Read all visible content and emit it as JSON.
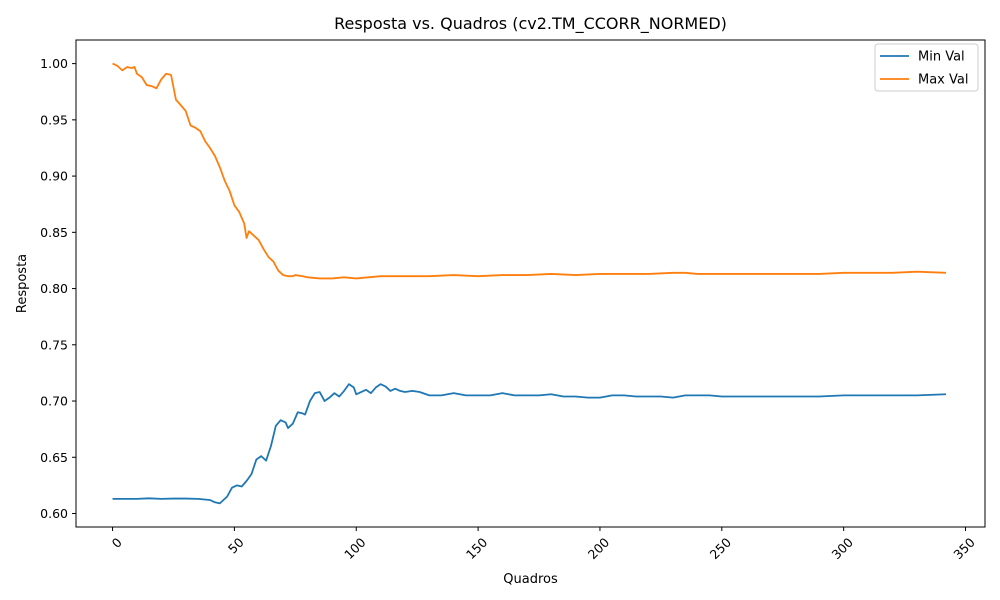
{
  "chart_data": {
    "type": "line",
    "title": "Resposta vs. Quadros (cv2.TM_CCORR_NORMED)",
    "xlabel": "Quadros",
    "ylabel": "Resposta",
    "xlim": [
      -15,
      358
    ],
    "ylim": [
      0.588,
      1.021
    ],
    "xticks": [
      0,
      50,
      100,
      150,
      200,
      250,
      300,
      350
    ],
    "yticks": [
      0.6,
      0.65,
      0.7,
      0.75,
      0.8,
      0.85,
      0.9,
      0.95,
      1.0
    ],
    "ytick_labels": [
      "0.60",
      "0.65",
      "0.70",
      "0.75",
      "0.80",
      "0.85",
      "0.90",
      "0.95",
      "1.00"
    ],
    "xtick_rotation": 45,
    "grid": false,
    "legend_position": "top-right",
    "series": [
      {
        "name": "Min Val",
        "color": "#1f77b4",
        "points": [
          [
            0,
            0.613
          ],
          [
            5,
            0.613
          ],
          [
            10,
            0.613
          ],
          [
            15,
            0.6135
          ],
          [
            20,
            0.613
          ],
          [
            25,
            0.6133
          ],
          [
            30,
            0.6133
          ],
          [
            35,
            0.613
          ],
          [
            40,
            0.612
          ],
          [
            42,
            0.61
          ],
          [
            44,
            0.609
          ],
          [
            47,
            0.615
          ],
          [
            49,
            0.623
          ],
          [
            51,
            0.625
          ],
          [
            53,
            0.624
          ],
          [
            55,
            0.629
          ],
          [
            57,
            0.635
          ],
          [
            59,
            0.648
          ],
          [
            61,
            0.651
          ],
          [
            63,
            0.647
          ],
          [
            65,
            0.66
          ],
          [
            67,
            0.678
          ],
          [
            69,
            0.683
          ],
          [
            71,
            0.681
          ],
          [
            72,
            0.676
          ],
          [
            74,
            0.68
          ],
          [
            76,
            0.69
          ],
          [
            78,
            0.689
          ],
          [
            79,
            0.688
          ],
          [
            81,
            0.7
          ],
          [
            83,
            0.707
          ],
          [
            85,
            0.708
          ],
          [
            87,
            0.7
          ],
          [
            89,
            0.703
          ],
          [
            91,
            0.707
          ],
          [
            93,
            0.704
          ],
          [
            95,
            0.709
          ],
          [
            97,
            0.715
          ],
          [
            99,
            0.712
          ],
          [
            100,
            0.706
          ],
          [
            102,
            0.708
          ],
          [
            104,
            0.71
          ],
          [
            106,
            0.707
          ],
          [
            108,
            0.712
          ],
          [
            110,
            0.715
          ],
          [
            112,
            0.713
          ],
          [
            114,
            0.709
          ],
          [
            116,
            0.711
          ],
          [
            118,
            0.709
          ],
          [
            120,
            0.708
          ],
          [
            123,
            0.709
          ],
          [
            126,
            0.708
          ],
          [
            130,
            0.705
          ],
          [
            135,
            0.705
          ],
          [
            140,
            0.707
          ],
          [
            145,
            0.705
          ],
          [
            150,
            0.705
          ],
          [
            155,
            0.705
          ],
          [
            160,
            0.707
          ],
          [
            165,
            0.705
          ],
          [
            170,
            0.705
          ],
          [
            175,
            0.705
          ],
          [
            180,
            0.706
          ],
          [
            185,
            0.704
          ],
          [
            190,
            0.704
          ],
          [
            195,
            0.703
          ],
          [
            200,
            0.703
          ],
          [
            205,
            0.705
          ],
          [
            210,
            0.705
          ],
          [
            215,
            0.704
          ],
          [
            220,
            0.704
          ],
          [
            225,
            0.704
          ],
          [
            230,
            0.703
          ],
          [
            235,
            0.705
          ],
          [
            240,
            0.705
          ],
          [
            245,
            0.705
          ],
          [
            250,
            0.704
          ],
          [
            255,
            0.704
          ],
          [
            260,
            0.704
          ],
          [
            270,
            0.704
          ],
          [
            280,
            0.704
          ],
          [
            290,
            0.704
          ],
          [
            300,
            0.705
          ],
          [
            310,
            0.705
          ],
          [
            320,
            0.705
          ],
          [
            330,
            0.705
          ],
          [
            342,
            0.706
          ]
        ]
      },
      {
        "name": "Max Val",
        "color": "#ff7f0e",
        "points": [
          [
            0,
            1.0
          ],
          [
            2,
            0.998
          ],
          [
            4,
            0.994
          ],
          [
            6,
            0.997
          ],
          [
            8,
            0.996
          ],
          [
            9,
            0.997
          ],
          [
            10,
            0.991
          ],
          [
            12,
            0.988
          ],
          [
            14,
            0.981
          ],
          [
            16,
            0.98
          ],
          [
            18,
            0.978
          ],
          [
            20,
            0.986
          ],
          [
            22,
            0.991
          ],
          [
            24,
            0.99
          ],
          [
            26,
            0.968
          ],
          [
            28,
            0.963
          ],
          [
            30,
            0.958
          ],
          [
            32,
            0.945
          ],
          [
            34,
            0.943
          ],
          [
            36,
            0.94
          ],
          [
            38,
            0.931
          ],
          [
            40,
            0.925
          ],
          [
            42,
            0.918
          ],
          [
            44,
            0.908
          ],
          [
            46,
            0.896
          ],
          [
            48,
            0.887
          ],
          [
            50,
            0.874
          ],
          [
            52,
            0.868
          ],
          [
            54,
            0.858
          ],
          [
            55,
            0.845
          ],
          [
            56,
            0.851
          ],
          [
            58,
            0.847
          ],
          [
            60,
            0.843
          ],
          [
            62,
            0.835
          ],
          [
            64,
            0.828
          ],
          [
            66,
            0.824
          ],
          [
            68,
            0.816
          ],
          [
            70,
            0.812
          ],
          [
            72,
            0.811
          ],
          [
            74,
            0.811
          ],
          [
            75,
            0.812
          ],
          [
            78,
            0.811
          ],
          [
            80,
            0.81
          ],
          [
            85,
            0.809
          ],
          [
            90,
            0.809
          ],
          [
            95,
            0.81
          ],
          [
            100,
            0.809
          ],
          [
            105,
            0.81
          ],
          [
            110,
            0.811
          ],
          [
            115,
            0.811
          ],
          [
            120,
            0.811
          ],
          [
            125,
            0.811
          ],
          [
            130,
            0.811
          ],
          [
            140,
            0.812
          ],
          [
            150,
            0.811
          ],
          [
            160,
            0.812
          ],
          [
            170,
            0.812
          ],
          [
            180,
            0.813
          ],
          [
            190,
            0.812
          ],
          [
            200,
            0.813
          ],
          [
            210,
            0.813
          ],
          [
            220,
            0.813
          ],
          [
            230,
            0.814
          ],
          [
            235,
            0.814
          ],
          [
            240,
            0.813
          ],
          [
            245,
            0.813
          ],
          [
            250,
            0.813
          ],
          [
            260,
            0.813
          ],
          [
            270,
            0.813
          ],
          [
            280,
            0.813
          ],
          [
            290,
            0.813
          ],
          [
            300,
            0.814
          ],
          [
            310,
            0.814
          ],
          [
            320,
            0.814
          ],
          [
            330,
            0.815
          ],
          [
            342,
            0.814
          ]
        ]
      }
    ]
  }
}
